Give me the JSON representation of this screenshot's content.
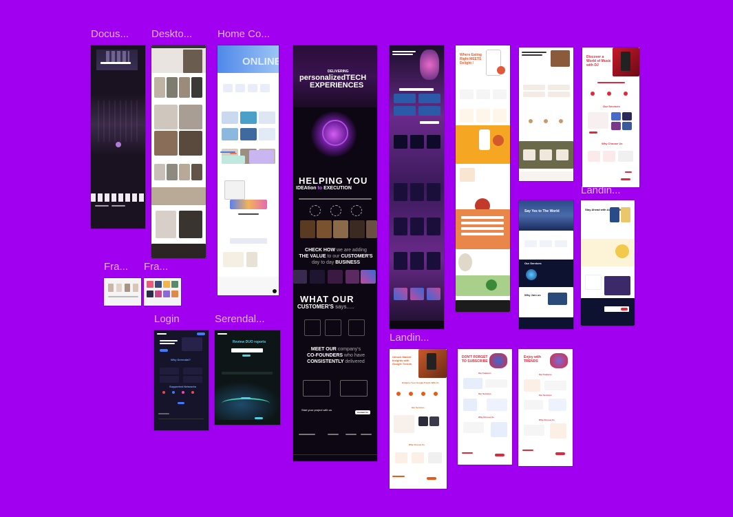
{
  "canvas": {
    "background": "#a100f0",
    "label_color": "#e0b3ff"
  },
  "labels": {
    "docus": "Docus...",
    "deskto": "Deskto...",
    "home_co": "Home Co...",
    "fra1": "Fra...",
    "fra2": "Fra...",
    "login": "Login",
    "serendal": "Serendal...",
    "landin_right": "Landin...",
    "landin_bottom": "Landin..."
  },
  "tech_page": {
    "delivering": "DELIVERING",
    "headline1": "personalizedTECH",
    "headline2": "EXPERIENCES",
    "helping": "HELPING YOU",
    "idea_1": "IDEAtion",
    "idea_2": "to",
    "idea_3": "EXECUTION",
    "check_1": "CHECK HOW",
    "check_2": "we are adding",
    "check_3": "THE VALUE",
    "check_4": "to our",
    "check_5": "CUSTOMER'S",
    "check_6": "day to day",
    "check_7": "BUSINESS",
    "what_our": "WHAT OUR",
    "customers": "CUSTOMER'S",
    "says": "says.....",
    "meet_1": "MEET OUR",
    "meet_2": "company's",
    "meet_3": "CO-FOUNDERS",
    "meet_4": "who have",
    "meet_5": "CONSISTENTLY",
    "meet_6": "delivered",
    "start_project": "Start your project with us",
    "contact_btn": "Contact Us"
  },
  "music_landing": {
    "title_1": "Discover a",
    "title_2": "World of Music",
    "title_3": "with DJ",
    "services": "Our Services",
    "why": "Why Choose Us"
  },
  "market_landing": {
    "title_1": "Unlock Market",
    "title_2": "Insights with",
    "title_3": "Google Trends",
    "enhance": "Enhance Your Google Trends With Us",
    "services": "Our Services",
    "why": "Why Choose Us"
  },
  "subscribe_landing": {
    "title_1": "DON'T FORGET",
    "title_2": "TO SUBSCRIBE",
    "features": "Our Features",
    "services": "Our Services",
    "why": "Why Choose Us"
  },
  "trends_landing": {
    "title_1": "Enjoy with",
    "title_2": "TRENDS",
    "features": "Our Features",
    "services": "Our Services",
    "why": "Why Choose Us"
  },
  "login_page": {
    "why": "Why Serendal?",
    "supported": "Supported Networks"
  },
  "serendal_page": {
    "title": "Review DUO reports"
  },
  "home_page": {
    "hero": "ONLINE"
  },
  "food_page": {
    "title_1": "Where Eating",
    "title_2": "Right MEETS",
    "title_3": "Delight !"
  },
  "weather_page": {
    "hero": "Say Yes to The World",
    "services": "Our Services",
    "why": "Why Join us",
    "accu": "Stay Ahead with AccuWeather"
  }
}
